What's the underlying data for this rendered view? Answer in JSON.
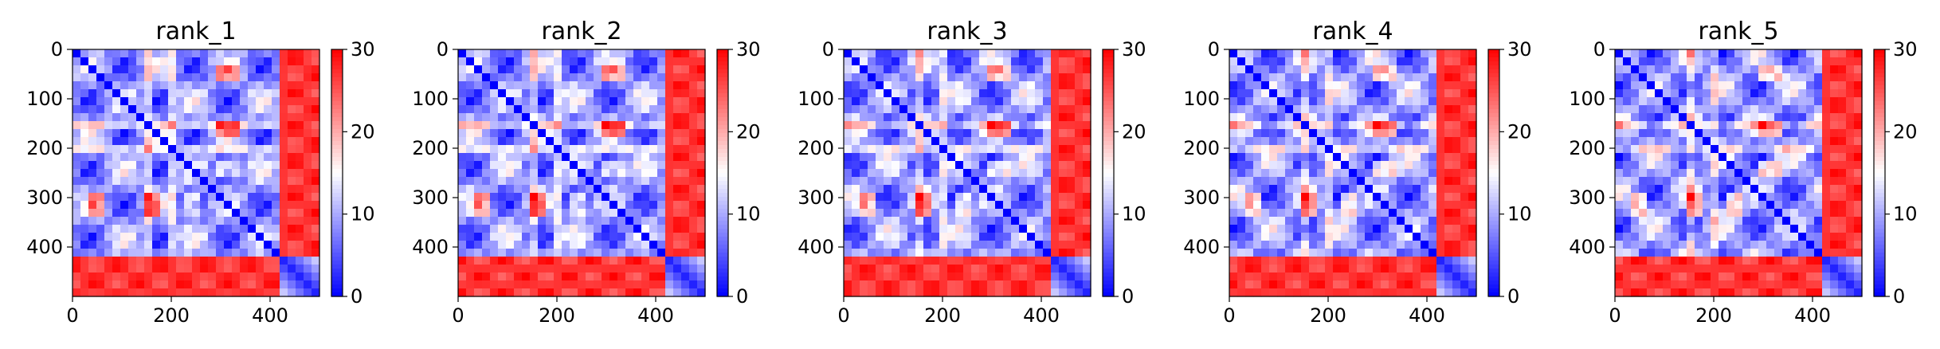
{
  "figure": {
    "panels": [
      {
        "title": "rank_1"
      },
      {
        "title": "rank_2"
      },
      {
        "title": "rank_3"
      },
      {
        "title": "rank_4"
      },
      {
        "title": "rank_5"
      }
    ]
  },
  "chart_data": [
    {
      "type": "heatmap",
      "title": "rank_1",
      "xlabel": "",
      "ylabel": "",
      "xlim": [
        0,
        500
      ],
      "ylim": [
        500,
        0
      ],
      "xticks": [
        0,
        200,
        400
      ],
      "yticks": [
        0,
        100,
        200,
        300,
        400
      ],
      "colorbar": {
        "range": [
          0,
          30
        ],
        "ticks": [
          0,
          10,
          20,
          30
        ],
        "colormap": "bwr",
        "low_color": "#0000ff",
        "mid_color": "#ffffff",
        "high_color": "#ff0000"
      },
      "description_values": {
        "diagonal": 0,
        "c_terminal_block_start": 420,
        "max": 30
      }
    },
    {
      "type": "heatmap",
      "title": "rank_2",
      "xlabel": "",
      "ylabel": "",
      "xlim": [
        0,
        500
      ],
      "ylim": [
        500,
        0
      ],
      "xticks": [
        0,
        200,
        400
      ],
      "yticks": [
        0,
        100,
        200,
        300,
        400
      ],
      "colorbar": {
        "range": [
          0,
          30
        ],
        "ticks": [
          0,
          10,
          20,
          30
        ],
        "colormap": "bwr",
        "low_color": "#0000ff",
        "mid_color": "#ffffff",
        "high_color": "#ff0000"
      },
      "description_values": {
        "diagonal": 0,
        "c_terminal_block_start": 420,
        "max": 30
      }
    },
    {
      "type": "heatmap",
      "title": "rank_3",
      "xlabel": "",
      "ylabel": "",
      "xlim": [
        0,
        500
      ],
      "ylim": [
        500,
        0
      ],
      "xticks": [
        0,
        200,
        400
      ],
      "yticks": [
        0,
        100,
        200,
        300,
        400
      ],
      "colorbar": {
        "range": [
          0,
          30
        ],
        "ticks": [
          0,
          10,
          20,
          30
        ],
        "colormap": "bwr",
        "low_color": "#0000ff",
        "mid_color": "#ffffff",
        "high_color": "#ff0000"
      },
      "description_values": {
        "diagonal": 0,
        "c_terminal_block_start": 420,
        "max": 30
      }
    },
    {
      "type": "heatmap",
      "title": "rank_4",
      "xlabel": "",
      "ylabel": "",
      "xlim": [
        0,
        500
      ],
      "ylim": [
        500,
        0
      ],
      "xticks": [
        0,
        200,
        400
      ],
      "yticks": [
        0,
        100,
        200,
        300,
        400
      ],
      "colorbar": {
        "range": [
          0,
          30
        ],
        "ticks": [
          0,
          10,
          20,
          30
        ],
        "colormap": "bwr",
        "low_color": "#0000ff",
        "mid_color": "#ffffff",
        "high_color": "#ff0000"
      },
      "description_values": {
        "diagonal": 0,
        "c_terminal_block_start": 420,
        "max": 30
      }
    },
    {
      "type": "heatmap",
      "title": "rank_5",
      "xlabel": "",
      "ylabel": "",
      "xlim": [
        0,
        500
      ],
      "ylim": [
        500,
        0
      ],
      "xticks": [
        0,
        200,
        400
      ],
      "yticks": [
        0,
        100,
        200,
        300,
        400
      ],
      "colorbar": {
        "range": [
          0,
          30
        ],
        "ticks": [
          0,
          10,
          20,
          30
        ],
        "colormap": "bwr",
        "low_color": "#0000ff",
        "mid_color": "#ffffff",
        "high_color": "#ff0000"
      },
      "description_values": {
        "diagonal": 0,
        "c_terminal_block_start": 420,
        "max": 30
      }
    }
  ]
}
